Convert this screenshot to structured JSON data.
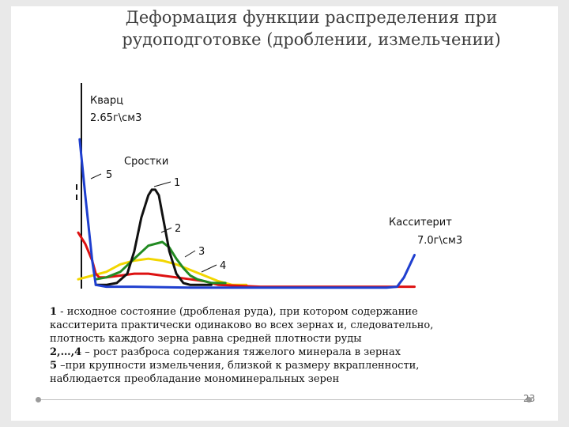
{
  "slide": {
    "title_line1": "Деформация функции распределения при",
    "title_line2": "рудоподготовке (дроблении, измельчении)",
    "page_number": "23"
  },
  "chart_data": {
    "type": "line",
    "annotations": {
      "quartz_name": "Кварц",
      "quartz_density": "2.65г\\см3",
      "label_5": "5",
      "intergrowths": "Сростки",
      "label_1": "1",
      "label_2": "2",
      "label_3": "3",
      "label_4": "4",
      "cassiterite_name": "Касситерит",
      "cassiterite_density": "7.0г\\см3"
    },
    "xlim": [
      2.4,
      7.6
    ],
    "ylim": [
      0,
      1
    ],
    "series": [
      {
        "id": "black",
        "color": "#111111",
        "x": [
          2.65,
          2.8,
          2.95,
          3.1,
          3.2,
          3.3,
          3.4,
          3.45,
          3.5,
          3.55,
          3.6,
          3.7,
          3.8,
          3.9,
          4.0,
          4.1,
          4.2,
          4.3
        ],
        "y": [
          0.02,
          0.02,
          0.03,
          0.08,
          0.2,
          0.38,
          0.5,
          0.53,
          0.53,
          0.5,
          0.4,
          0.2,
          0.08,
          0.03,
          0.02,
          0.02,
          0.02,
          0.02
        ]
      },
      {
        "id": "green",
        "color": "#228b22",
        "x": [
          2.65,
          2.8,
          3.0,
          3.2,
          3.4,
          3.6,
          3.7,
          3.8,
          3.9,
          4.0,
          4.1,
          4.2,
          4.3,
          4.4,
          4.5
        ],
        "y": [
          0.05,
          0.06,
          0.09,
          0.16,
          0.23,
          0.25,
          0.22,
          0.16,
          0.11,
          0.07,
          0.05,
          0.04,
          0.03,
          0.03,
          0.03
        ]
      },
      {
        "id": "yellow",
        "color": "#f2d600",
        "x": [
          2.4,
          2.6,
          2.8,
          3.0,
          3.2,
          3.4,
          3.6,
          3.8,
          4.0,
          4.2,
          4.4,
          4.6,
          4.8
        ],
        "y": [
          0.05,
          0.07,
          0.09,
          0.13,
          0.15,
          0.16,
          0.15,
          0.13,
          0.1,
          0.07,
          0.04,
          0.02,
          0.02
        ]
      },
      {
        "id": "red",
        "color": "#dd1111",
        "x": [
          2.4,
          2.5,
          2.6,
          2.65,
          2.7,
          2.8,
          3.0,
          3.2,
          3.4,
          3.6,
          3.8,
          4.0,
          4.2,
          4.4,
          5.0,
          6.0,
          6.5,
          7.0,
          7.2
        ],
        "y": [
          0.3,
          0.24,
          0.15,
          0.08,
          0.06,
          0.06,
          0.07,
          0.08,
          0.08,
          0.07,
          0.06,
          0.05,
          0.04,
          0.02,
          0.01,
          0.01,
          0.01,
          0.01,
          0.01
        ]
      },
      {
        "id": "blue",
        "color": "#1f3fcf",
        "x": [
          2.42,
          2.5,
          2.6,
          2.65,
          2.8,
          3.2,
          4.0,
          5.0,
          6.0,
          6.8,
          6.95,
          7.05,
          7.2
        ],
        "y": [
          0.8,
          0.5,
          0.15,
          0.02,
          0.01,
          0.01,
          0.005,
          0.005,
          0.005,
          0.005,
          0.01,
          0.06,
          0.18
        ]
      }
    ]
  }
}
